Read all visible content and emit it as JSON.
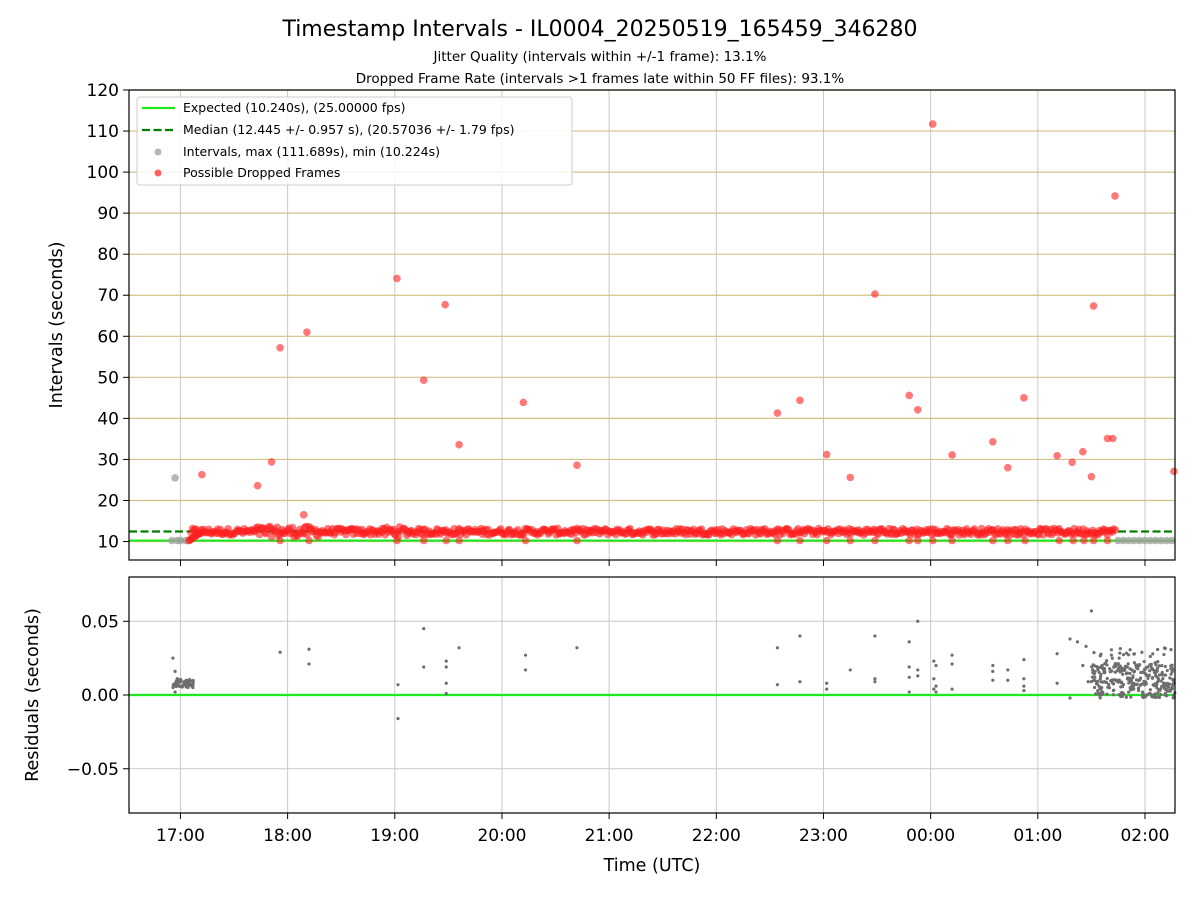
{
  "figure": {
    "title": "Timestamp Intervals - IL0004_20250519_165459_346280",
    "subtitle_1": "Jitter Quality (intervals within +/-1 frame): 13.1%",
    "subtitle_2": "Dropped Frame Rate (intervals >1 frames late within 50 FF files): 93.1%"
  },
  "colors": {
    "expected": "#1ee81e",
    "median": "#007f00",
    "intervals": "#9e9e9e",
    "dropped": "#ff2020",
    "residuals": "#6e6e6e",
    "hgrid_top": "#d4c088",
    "grid": "#c8c8c8"
  },
  "chart_data": [
    {
      "id": "intervals",
      "type": "scatter",
      "xlabel": "",
      "ylabel": "Intervals (seconds)",
      "x_units": "hours since 00:00 UTC of first day",
      "xlim": [
        16.52,
        26.28
      ],
      "ylim": [
        5.5,
        120
      ],
      "yticks": [
        10,
        20,
        30,
        40,
        50,
        60,
        70,
        80,
        90,
        100,
        110,
        120
      ],
      "grid": "horizontal and vertical",
      "legend_position": "upper-left",
      "legend": [
        "Expected (10.240s), (25.00000 fps)",
        "Median (12.445 +/- 0.957 s), (20.57036 +/- 1.79 fps)",
        "Intervals, max (111.689s), min (10.224s)",
        "Possible Dropped Frames"
      ],
      "expected_interval": 10.24,
      "median_interval": 12.445,
      "series": [
        {
          "name": "Intervals, max (111.689s), min (10.224s)",
          "points": [
            [
              16.95,
              25.5
            ],
            [
              16.92,
              10.25
            ],
            [
              16.97,
              10.25
            ],
            [
              17.0,
              10.25
            ],
            [
              17.05,
              10.25
            ],
            [
              17.08,
              10.25
            ],
            [
              25.75,
              10.25
            ],
            [
              25.8,
              10.25
            ],
            [
              25.85,
              10.25
            ],
            [
              25.9,
              10.25
            ],
            [
              25.95,
              10.25
            ],
            [
              26.0,
              10.25
            ],
            [
              26.05,
              10.25
            ],
            [
              26.1,
              10.25
            ],
            [
              26.15,
              10.25
            ],
            [
              26.2,
              10.25
            ],
            [
              26.25,
              10.25
            ]
          ]
        },
        {
          "name": "Possible Dropped Frames",
          "band": {
            "x_start": 17.1,
            "x_end": 25.72,
            "y_mean": 12.4,
            "y_spread": 0.8
          },
          "low_points": [
            [
              17.93,
              10.25
            ],
            [
              18.2,
              10.25
            ],
            [
              19.02,
              10.25
            ],
            [
              19.27,
              10.25
            ],
            [
              19.48,
              10.25
            ],
            [
              19.6,
              10.25
            ],
            [
              20.22,
              10.25
            ],
            [
              20.7,
              10.25
            ],
            [
              22.57,
              10.25
            ],
            [
              22.78,
              10.25
            ],
            [
              23.03,
              10.25
            ],
            [
              23.25,
              10.25
            ],
            [
              23.48,
              10.25
            ],
            [
              23.8,
              10.25
            ],
            [
              23.88,
              10.25
            ],
            [
              24.02,
              10.25
            ],
            [
              24.2,
              10.25
            ],
            [
              24.58,
              10.25
            ],
            [
              24.72,
              10.25
            ],
            [
              24.88,
              10.25
            ],
            [
              25.2,
              10.25
            ],
            [
              25.33,
              10.25
            ],
            [
              25.43,
              10.25
            ],
            [
              25.52,
              10.25
            ],
            [
              25.65,
              10.25
            ]
          ],
          "points": [
            [
              17.2,
              26.3
            ],
            [
              17.72,
              23.6
            ],
            [
              17.85,
              29.4
            ],
            [
              17.93,
              57.2
            ],
            [
              18.15,
              16.5
            ],
            [
              18.18,
              61.0
            ],
            [
              19.02,
              74.1
            ],
            [
              19.27,
              49.3
            ],
            [
              19.47,
              67.7
            ],
            [
              19.6,
              33.6
            ],
            [
              20.2,
              43.9
            ],
            [
              20.7,
              28.6
            ],
            [
              22.57,
              41.3
            ],
            [
              22.78,
              44.4
            ],
            [
              23.03,
              31.2
            ],
            [
              23.25,
              25.6
            ],
            [
              23.48,
              70.3
            ],
            [
              23.8,
              45.6
            ],
            [
              23.88,
              42.1
            ],
            [
              24.02,
              111.7
            ],
            [
              24.2,
              31.1
            ],
            [
              24.58,
              34.3
            ],
            [
              24.72,
              28.0
            ],
            [
              24.87,
              45.0
            ],
            [
              25.18,
              30.9
            ],
            [
              25.32,
              29.3
            ],
            [
              25.42,
              31.9
            ],
            [
              25.5,
              25.8
            ],
            [
              25.52,
              67.4
            ],
            [
              25.65,
              35.1
            ],
            [
              25.7,
              35.1
            ],
            [
              25.72,
              94.2
            ],
            [
              26.27,
              27.1
            ]
          ]
        }
      ]
    },
    {
      "id": "residuals",
      "type": "scatter",
      "xlabel": "Time (UTC)",
      "ylabel": "Residuals (seconds)",
      "xlim": [
        16.52,
        26.28
      ],
      "ylim": [
        -0.08,
        0.08
      ],
      "yticks": [
        -0.05,
        0.0,
        0.05
      ],
      "ytick_labels": [
        "−0.05",
        "0.00",
        "0.05"
      ],
      "xticks": [
        17,
        18,
        19,
        20,
        21,
        22,
        23,
        24,
        25,
        26
      ],
      "xtick_labels": [
        "17:00",
        "18:00",
        "19:00",
        "20:00",
        "21:00",
        "22:00",
        "23:00",
        "00:00",
        "01:00",
        "02:00"
      ],
      "grid": "horizontal and vertical",
      "zero_line": 0.0,
      "series": [
        {
          "name": "",
          "cluster_start": {
            "x_start": 16.93,
            "x_end": 17.12,
            "y_mean": 0.008,
            "y_spread": 0.003
          },
          "cluster_end": {
            "x_start": 25.5,
            "x_end": 26.28,
            "y_mean": 0.01,
            "y_spread": 0.012
          },
          "points": [
            [
              16.93,
              0.025
            ],
            [
              16.95,
              0.016
            ],
            [
              16.97,
              0.011
            ],
            [
              16.95,
              0.002
            ],
            [
              17.93,
              0.029
            ],
            [
              18.2,
              0.031
            ],
            [
              18.2,
              0.021
            ],
            [
              19.03,
              0.007
            ],
            [
              19.03,
              -0.016
            ],
            [
              19.27,
              0.045
            ],
            [
              19.27,
              0.019
            ],
            [
              19.48,
              0.023
            ],
            [
              19.48,
              0.019
            ],
            [
              19.48,
              0.008
            ],
            [
              19.48,
              0.001
            ],
            [
              19.6,
              0.032
            ],
            [
              20.22,
              0.027
            ],
            [
              20.22,
              0.017
            ],
            [
              20.7,
              0.032
            ],
            [
              22.57,
              0.032
            ],
            [
              22.57,
              0.007
            ],
            [
              22.78,
              0.04
            ],
            [
              22.78,
              0.009
            ],
            [
              23.03,
              0.008
            ],
            [
              23.03,
              0.004
            ],
            [
              23.25,
              0.017
            ],
            [
              23.48,
              0.04
            ],
            [
              23.48,
              0.011
            ],
            [
              23.48,
              0.009
            ],
            [
              23.8,
              0.036
            ],
            [
              23.8,
              0.019
            ],
            [
              23.8,
              0.012
            ],
            [
              23.8,
              0.002
            ],
            [
              23.88,
              0.05
            ],
            [
              23.88,
              0.017
            ],
            [
              23.88,
              0.013
            ],
            [
              24.03,
              0.023
            ],
            [
              24.05,
              0.02
            ],
            [
              24.03,
              0.011
            ],
            [
              24.05,
              0.006
            ],
            [
              24.03,
              0.004
            ],
            [
              24.05,
              0.002
            ],
            [
              24.2,
              0.027
            ],
            [
              24.2,
              0.021
            ],
            [
              24.2,
              0.004
            ],
            [
              24.58,
              0.02
            ],
            [
              24.58,
              0.016
            ],
            [
              24.58,
              0.01
            ],
            [
              24.72,
              0.017
            ],
            [
              24.72,
              0.01
            ],
            [
              24.87,
              0.024
            ],
            [
              24.87,
              0.011
            ],
            [
              24.87,
              0.006
            ],
            [
              24.87,
              0.003
            ],
            [
              25.18,
              0.028
            ],
            [
              25.18,
              0.008
            ],
            [
              25.3,
              0.038
            ],
            [
              25.3,
              -0.002
            ],
            [
              25.37,
              0.036
            ],
            [
              25.42,
              0.02
            ],
            [
              25.5,
              0.057
            ],
            [
              25.45,
              0.033
            ],
            [
              25.47,
              0.009
            ]
          ]
        }
      ]
    }
  ]
}
